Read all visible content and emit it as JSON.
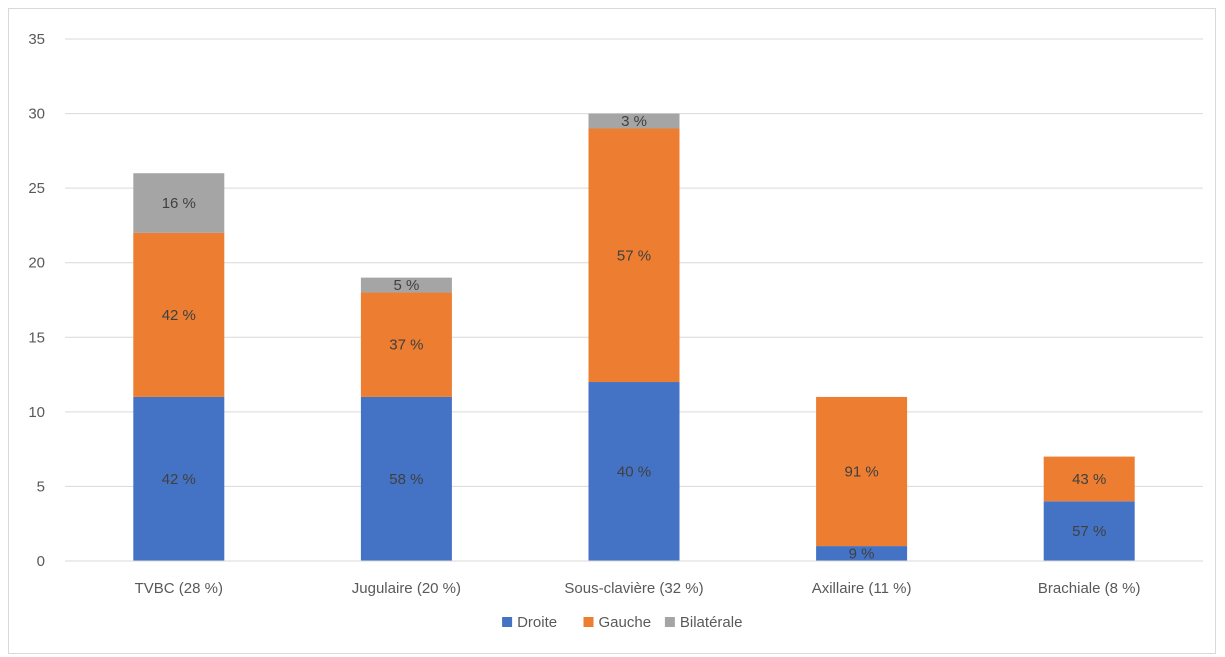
{
  "chart_data": {
    "type": "bar",
    "stacked": true,
    "categories": [
      "TVBC (28 %)",
      "Jugulaire (20 %)",
      "Sous-clavière (32 %)",
      "Axillaire (11 %)",
      "Brachiale (8 %)"
    ],
    "series": [
      {
        "name": "Droite",
        "color": "#4472C4",
        "values": [
          11,
          11,
          12,
          1,
          4
        ],
        "labels": [
          "42 %",
          "58 %",
          "40 %",
          "9 %",
          "57 %"
        ]
      },
      {
        "name": "Gauche",
        "color": "#ED7D31",
        "values": [
          11,
          7,
          17,
          10,
          3
        ],
        "labels": [
          "42 %",
          "37 %",
          "57 %",
          "91 %",
          "43 %"
        ]
      },
      {
        "name": "Bilatérale",
        "color": "#A5A5A5",
        "values": [
          4,
          1,
          1,
          0,
          0
        ],
        "labels": [
          "16 %",
          "5 %",
          "3 %",
          "",
          ""
        ]
      }
    ],
    "yticks": [
      0,
      5,
      10,
      15,
      20,
      25,
      30,
      35
    ],
    "ylim": [
      0,
      35
    ],
    "grid": true,
    "legend": "bottom"
  }
}
